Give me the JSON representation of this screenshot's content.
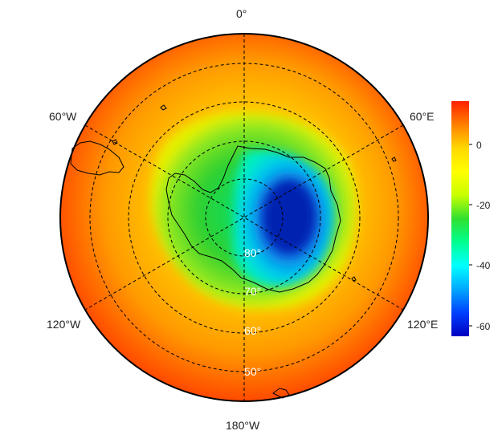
{
  "map": {
    "projection": "south polar stereographic",
    "longitude_labels": {
      "top": "0°",
      "upper_left": "60°W",
      "upper_right": "60°E",
      "lower_left": "120°W",
      "lower_right": "120°E",
      "bottom": "180°W"
    },
    "latitude_labels": [
      "80°",
      "70°",
      "60°",
      "50°"
    ],
    "colors": {
      "outer_field": "#ff5a00",
      "mid_field": "#ffd800",
      "ring_green": "#30d030",
      "core_cyan": "#00e0e8",
      "core_blue": "#0030c8",
      "coast_line": "#000000",
      "graticule": "#000000",
      "latitude_label_color": "#ffffff"
    }
  },
  "colorbar": {
    "ticks": [
      "0",
      "-20",
      "-40",
      "-60"
    ],
    "colors": [
      "#ff2000",
      "#ff8000",
      "#ffd800",
      "#ffff00",
      "#c8ff00",
      "#30e030",
      "#00ff90",
      "#00ffff",
      "#00a8ff",
      "#0040ff",
      "#0000c0"
    ]
  }
}
